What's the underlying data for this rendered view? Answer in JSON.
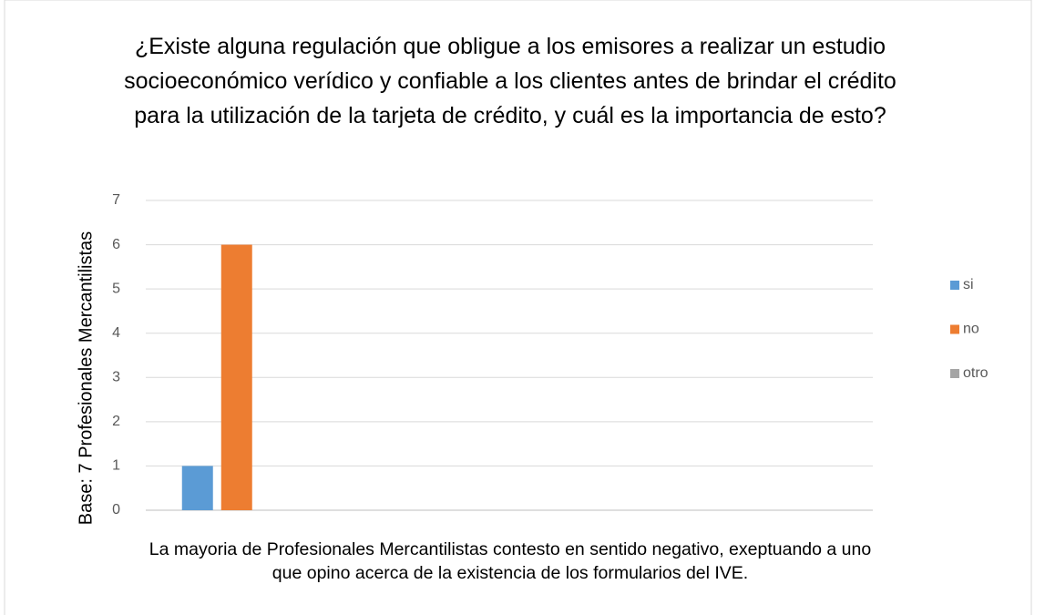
{
  "chart_data": {
    "type": "bar",
    "title": "¿Existe alguna regulación que obligue a los emisores a realizar un estudio socioeconómico verídico y confiable a los clientes antes de brindar el crédito para la utilización de la tarjeta de crédito, y cuál es la importancia de esto?",
    "x_label": "La mayoria de Profesionales Mercantilistas contesto en sentido negativo, exeptuando a uno que opino acerca de la existencia de los formularios del IVE.",
    "y_label": "Base: 7 Profesionales Mercantilistas",
    "categories": [
      null,
      null,
      null,
      null
    ],
    "series": [
      {
        "name": "si",
        "color": "#5b9bd5",
        "values": [
          1,
          null,
          null,
          null
        ]
      },
      {
        "name": "no",
        "color": "#ed7d31",
        "values": [
          6,
          null,
          null,
          null
        ]
      },
      {
        "name": "otro",
        "color": "#a5a5a5",
        "values": [
          0,
          null,
          null,
          null
        ]
      }
    ],
    "ylim": [
      0,
      7
    ],
    "yticks": [
      0,
      1,
      2,
      3,
      4,
      5,
      6,
      7
    ],
    "grid": true,
    "legend": "right"
  }
}
